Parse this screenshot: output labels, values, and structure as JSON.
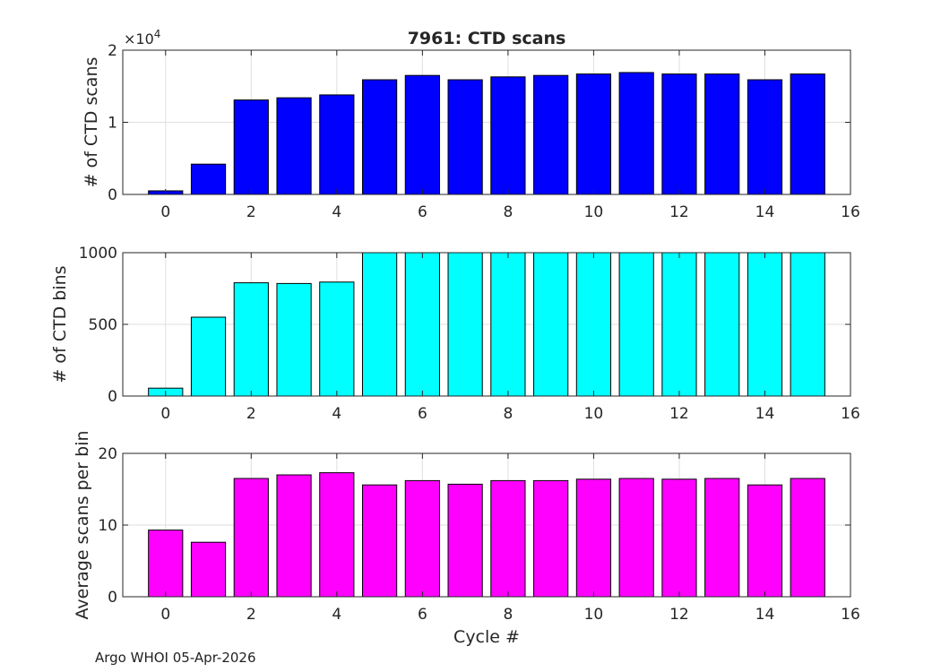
{
  "footer_text": "Argo WHOI 05-Apr-2026",
  "chart_data": [
    {
      "type": "bar",
      "title": "7961: CTD scans",
      "xlabel": "",
      "ylabel": "# of CTD scans",
      "exponent_label": "×10",
      "exponent_power": "4",
      "color": "#0000ff",
      "xlim": [
        -1,
        16
      ],
      "ylim": [
        0,
        20000
      ],
      "xticks": [
        "0",
        "2",
        "4",
        "6",
        "8",
        "10",
        "12",
        "14",
        "16"
      ],
      "yticks": [
        "0",
        "1",
        "2"
      ],
      "ytick_values": [
        0,
        10000,
        20000
      ],
      "x": [
        0,
        1,
        2,
        3,
        4,
        5,
        6,
        7,
        8,
        9,
        10,
        11,
        12,
        13,
        14,
        15
      ],
      "values": [
        500,
        4200,
        13100,
        13400,
        13800,
        15900,
        16500,
        15900,
        16300,
        16500,
        16700,
        16900,
        16700,
        16700,
        15900,
        16700
      ]
    },
    {
      "type": "bar",
      "title": "",
      "xlabel": "",
      "ylabel": "# of CTD bins",
      "color": "#00ffff",
      "xlim": [
        -1,
        16
      ],
      "ylim": [
        0,
        1000
      ],
      "xticks": [
        "0",
        "2",
        "4",
        "6",
        "8",
        "10",
        "12",
        "14",
        "16"
      ],
      "yticks": [
        "0",
        "500",
        "1000"
      ],
      "ytick_values": [
        0,
        500,
        1000
      ],
      "x": [
        0,
        1,
        2,
        3,
        4,
        5,
        6,
        7,
        8,
        9,
        10,
        11,
        12,
        13,
        14,
        15
      ],
      "values": [
        55,
        550,
        790,
        785,
        795,
        1000,
        1000,
        1000,
        1000,
        1000,
        1000,
        1000,
        1000,
        1000,
        1000,
        1000
      ]
    },
    {
      "type": "bar",
      "title": "",
      "xlabel": "Cycle #",
      "ylabel": "Average scans per bin",
      "color": "#ff00ff",
      "xlim": [
        -1,
        16
      ],
      "ylim": [
        0,
        20
      ],
      "xticks": [
        "0",
        "2",
        "4",
        "6",
        "8",
        "10",
        "12",
        "14",
        "16"
      ],
      "yticks": [
        "0",
        "10",
        "20"
      ],
      "ytick_values": [
        0,
        10,
        20
      ],
      "x": [
        0,
        1,
        2,
        3,
        4,
        5,
        6,
        7,
        8,
        9,
        10,
        11,
        12,
        13,
        14,
        15
      ],
      "values": [
        9.3,
        7.6,
        16.5,
        17.0,
        17.3,
        15.6,
        16.2,
        15.7,
        16.2,
        16.2,
        16.4,
        16.5,
        16.4,
        16.5,
        15.6,
        16.5
      ]
    }
  ]
}
